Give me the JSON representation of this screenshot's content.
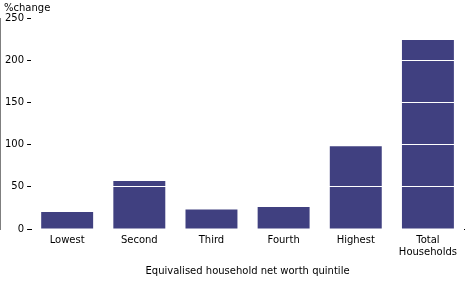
{
  "chart_data": {
    "type": "bar",
    "y_label": "%change",
    "x_label": "Equivalised household net worth quintile",
    "categories": [
      "Lowest",
      "Second",
      "Third",
      "Fourth",
      "Highest",
      "Total Households"
    ],
    "values": [
      20,
      57,
      23,
      26,
      98,
      224
    ],
    "color": "#404080",
    "ylim": [
      0,
      250
    ],
    "yticks": [
      0,
      50,
      100,
      150,
      200,
      250
    ],
    "grid": true
  }
}
